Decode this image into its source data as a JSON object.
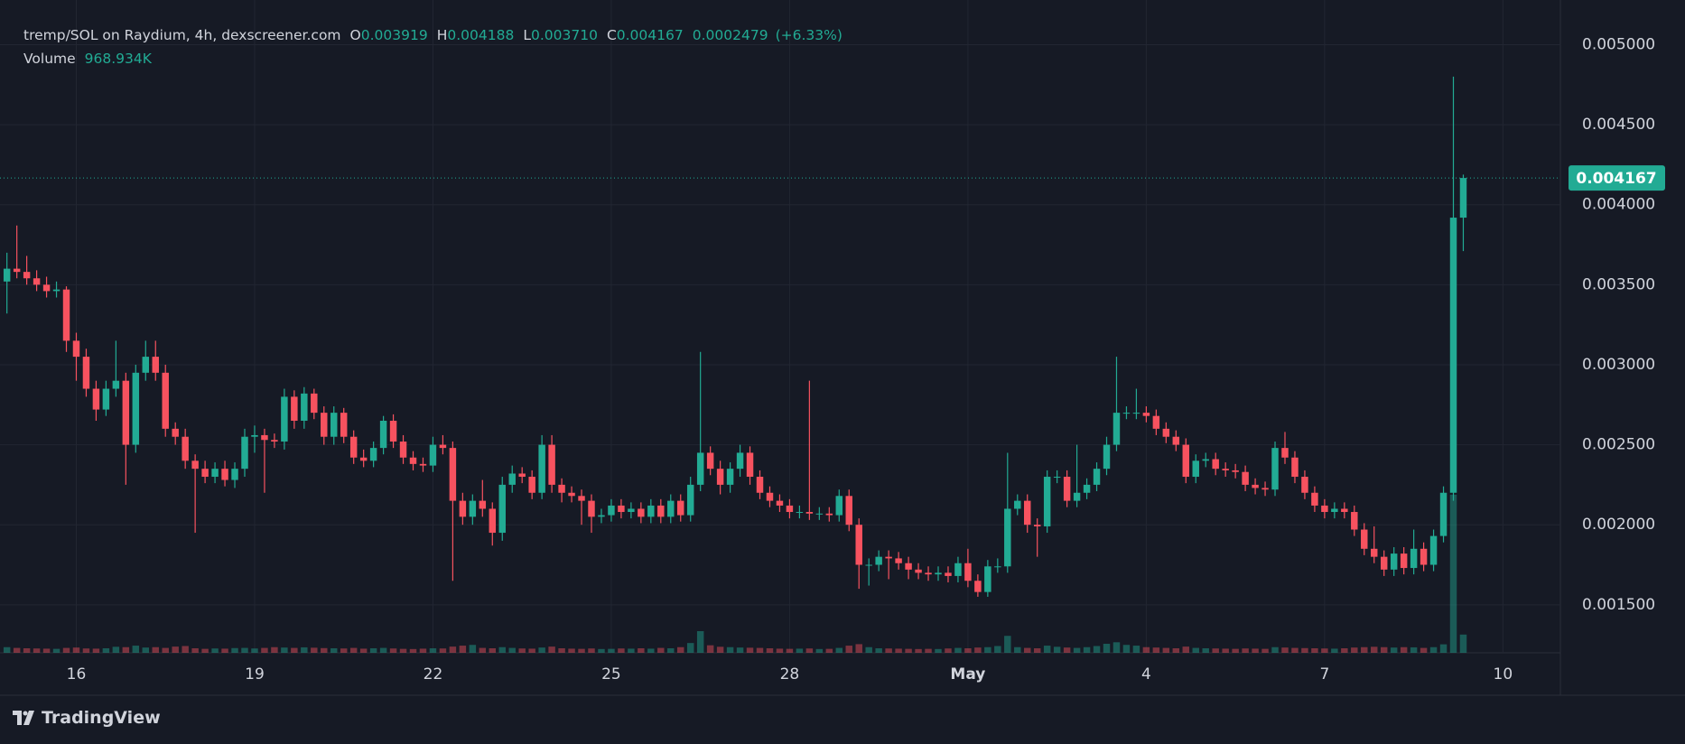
{
  "chart_data": {
    "type": "candlestick",
    "legend": {
      "title": "tremp/SOL on Raydium, 4h, dexscreener.com",
      "fields": [
        {
          "key": "O",
          "value": "0.003919"
        },
        {
          "key": "H",
          "value": "0.004188"
        },
        {
          "key": "L",
          "value": "0.003710"
        },
        {
          "key": "C",
          "value": "0.004167"
        }
      ],
      "change": "0.0002479",
      "change_pct": "(+6.33%)",
      "volume_name": "Volume",
      "volume_value": "968.934K",
      "price_label": "0.004167"
    },
    "watermark": "TradingView",
    "up_color": "#22ab94",
    "down_color": "#f7525f",
    "open": [
      0.00352,
      0.0036,
      0.00358,
      0.00354,
      0.0035,
      0.00346,
      0.00347,
      0.00315,
      0.00305,
      0.00285,
      0.00272,
      0.00285,
      0.0029,
      0.0025,
      0.00295,
      0.00305,
      0.00295,
      0.0026,
      0.00255,
      0.0024,
      0.00235,
      0.0023,
      0.00235,
      0.00228,
      0.00235,
      0.00255,
      0.00256,
      0.00253,
      0.00252,
      0.0028,
      0.00265,
      0.00282,
      0.0027,
      0.00255,
      0.0027,
      0.00255,
      0.00242,
      0.0024,
      0.00248,
      0.00265,
      0.00252,
      0.00242,
      0.00238,
      0.00237,
      0.0025,
      0.00248,
      0.00215,
      0.00205,
      0.00215,
      0.0021,
      0.00195,
      0.00225,
      0.00232,
      0.0023,
      0.0022,
      0.0025,
      0.00225,
      0.0022,
      0.00218,
      0.00215,
      0.00205,
      0.00206,
      0.00212,
      0.00208,
      0.0021,
      0.00205,
      0.00212,
      0.00205,
      0.00215,
      0.00206,
      0.00225,
      0.00245,
      0.00235,
      0.00225,
      0.00235,
      0.00245,
      0.0023,
      0.0022,
      0.00215,
      0.00212,
      0.00208,
      0.00208,
      0.00207,
      0.00207,
      0.00206,
      0.00218,
      0.002,
      0.00175,
      0.00175,
      0.0018,
      0.00179,
      0.00176,
      0.00172,
      0.0017,
      0.00169,
      0.0017,
      0.00168,
      0.00176,
      0.00165,
      0.00158,
      0.00174,
      0.00174,
      0.0021,
      0.00215,
      0.002,
      0.00199,
      0.0023,
      0.0023,
      0.00215,
      0.0022,
      0.00225,
      0.00235,
      0.0025,
      0.0027,
      0.0027,
      0.0027,
      0.00268,
      0.0026,
      0.00255,
      0.0025,
      0.0023,
      0.0024,
      0.00241,
      0.00235,
      0.00234,
      0.00233,
      0.00225,
      0.00223,
      0.00222,
      0.00248,
      0.00242,
      0.0023,
      0.0022,
      0.00212,
      0.00208,
      0.0021,
      0.00208,
      0.00197,
      0.00185,
      0.0018,
      0.00172,
      0.00182,
      0.00173,
      0.00185,
      0.00175,
      0.00193,
      0.0022,
      0.003919
    ],
    "high": [
      0.0037,
      0.00387,
      0.00368,
      0.00359,
      0.00355,
      0.00352,
      0.00349,
      0.0032,
      0.0031,
      0.0029,
      0.0029,
      0.00315,
      0.00295,
      0.003,
      0.00315,
      0.00315,
      0.003,
      0.00264,
      0.0026,
      0.00244,
      0.0024,
      0.00239,
      0.0024,
      0.00239,
      0.0026,
      0.00262,
      0.0026,
      0.00257,
      0.00285,
      0.00284,
      0.00286,
      0.00285,
      0.00274,
      0.00274,
      0.00273,
      0.00259,
      0.00247,
      0.00252,
      0.00268,
      0.00269,
      0.00256,
      0.00246,
      0.00242,
      0.00255,
      0.00256,
      0.00252,
      0.0022,
      0.00219,
      0.00228,
      0.00214,
      0.0023,
      0.00237,
      0.00236,
      0.00234,
      0.00256,
      0.00256,
      0.00229,
      0.00224,
      0.00222,
      0.00219,
      0.0021,
      0.00216,
      0.00216,
      0.00214,
      0.00214,
      0.00216,
      0.00216,
      0.00219,
      0.00219,
      0.0023,
      0.00308,
      0.00249,
      0.0024,
      0.00239,
      0.0025,
      0.00249,
      0.00234,
      0.00224,
      0.00219,
      0.00216,
      0.00212,
      0.0029,
      0.00211,
      0.00211,
      0.00222,
      0.00222,
      0.00204,
      0.00179,
      0.00184,
      0.00184,
      0.00183,
      0.0018,
      0.00176,
      0.00174,
      0.00174,
      0.00174,
      0.0018,
      0.00185,
      0.00169,
      0.00178,
      0.00179,
      0.00245,
      0.00219,
      0.00219,
      0.00204,
      0.00234,
      0.00234,
      0.00234,
      0.0025,
      0.00229,
      0.00239,
      0.00255,
      0.00305,
      0.00274,
      0.00285,
      0.00274,
      0.00272,
      0.00264,
      0.00259,
      0.00254,
      0.00244,
      0.00245,
      0.00245,
      0.00239,
      0.00238,
      0.00237,
      0.00229,
      0.00227,
      0.00252,
      0.00258,
      0.00246,
      0.00234,
      0.00224,
      0.00216,
      0.00214,
      0.00214,
      0.00212,
      0.00201,
      0.00199,
      0.00184,
      0.00186,
      0.00186,
      0.00197,
      0.00189,
      0.00197,
      0.00224,
      0.0048,
      0.004188
    ],
    "low": [
      0.00332,
      0.00354,
      0.0035,
      0.00346,
      0.00342,
      0.00342,
      0.00308,
      0.0029,
      0.0028,
      0.00265,
      0.00268,
      0.0028,
      0.00225,
      0.00245,
      0.0029,
      0.0029,
      0.00255,
      0.0025,
      0.00235,
      0.00195,
      0.00226,
      0.00226,
      0.00224,
      0.00223,
      0.0023,
      0.00245,
      0.0022,
      0.00248,
      0.00247,
      0.0026,
      0.0026,
      0.00266,
      0.0025,
      0.0025,
      0.00251,
      0.00238,
      0.00236,
      0.00236,
      0.00244,
      0.00248,
      0.00238,
      0.00234,
      0.00233,
      0.00233,
      0.00244,
      0.00165,
      0.002,
      0.002,
      0.00205,
      0.00187,
      0.0019,
      0.0022,
      0.00226,
      0.00216,
      0.00216,
      0.0022,
      0.00214,
      0.00214,
      0.002,
      0.00195,
      0.00201,
      0.00202,
      0.00204,
      0.00204,
      0.00201,
      0.00201,
      0.00201,
      0.00201,
      0.00202,
      0.00202,
      0.00221,
      0.00231,
      0.00219,
      0.0022,
      0.0023,
      0.00225,
      0.00216,
      0.00211,
      0.00208,
      0.00204,
      0.00204,
      0.00203,
      0.00203,
      0.00202,
      0.00202,
      0.00196,
      0.0016,
      0.00162,
      0.00171,
      0.00166,
      0.00172,
      0.00166,
      0.00166,
      0.00165,
      0.00165,
      0.00164,
      0.00164,
      0.00161,
      0.00155,
      0.00155,
      0.0017,
      0.0017,
      0.00206,
      0.00195,
      0.0018,
      0.00195,
      0.00226,
      0.00211,
      0.00211,
      0.00216,
      0.00221,
      0.00231,
      0.00246,
      0.00266,
      0.00266,
      0.00264,
      0.00256,
      0.00251,
      0.00246,
      0.00226,
      0.00226,
      0.00236,
      0.00231,
      0.0023,
      0.00229,
      0.00221,
      0.00219,
      0.00218,
      0.00218,
      0.00238,
      0.00226,
      0.00216,
      0.00208,
      0.00204,
      0.00204,
      0.00204,
      0.00193,
      0.00181,
      0.00176,
      0.00168,
      0.00168,
      0.00169,
      0.00169,
      0.00171,
      0.00171,
      0.00189,
      0.00215,
      0.00371
    ],
    "close": [
      0.0036,
      0.00358,
      0.00354,
      0.0035,
      0.00346,
      0.00347,
      0.00315,
      0.00305,
      0.00285,
      0.00272,
      0.00285,
      0.0029,
      0.0025,
      0.00295,
      0.00305,
      0.00295,
      0.0026,
      0.00255,
      0.0024,
      0.00235,
      0.0023,
      0.00235,
      0.00228,
      0.00235,
      0.00255,
      0.00256,
      0.00253,
      0.00252,
      0.0028,
      0.00265,
      0.00282,
      0.0027,
      0.00255,
      0.0027,
      0.00255,
      0.00242,
      0.0024,
      0.00248,
      0.00265,
      0.00252,
      0.00242,
      0.00238,
      0.00237,
      0.0025,
      0.00248,
      0.00215,
      0.00205,
      0.00215,
      0.0021,
      0.00195,
      0.00225,
      0.00232,
      0.0023,
      0.0022,
      0.0025,
      0.00225,
      0.0022,
      0.00218,
      0.00215,
      0.00205,
      0.00206,
      0.00212,
      0.00208,
      0.0021,
      0.00205,
      0.00212,
      0.00205,
      0.00215,
      0.00206,
      0.00225,
      0.00245,
      0.00235,
      0.00225,
      0.00235,
      0.00245,
      0.0023,
      0.0022,
      0.00215,
      0.00212,
      0.00208,
      0.00208,
      0.00207,
      0.00207,
      0.00206,
      0.00218,
      0.002,
      0.00175,
      0.00175,
      0.0018,
      0.00179,
      0.00176,
      0.00172,
      0.0017,
      0.00169,
      0.0017,
      0.00168,
      0.00176,
      0.00165,
      0.00158,
      0.00174,
      0.00174,
      0.0021,
      0.00215,
      0.002,
      0.00199,
      0.0023,
      0.0023,
      0.00215,
      0.0022,
      0.00225,
      0.00235,
      0.0025,
      0.0027,
      0.0027,
      0.0027,
      0.00268,
      0.0026,
      0.00255,
      0.0025,
      0.0023,
      0.0024,
      0.00241,
      0.00235,
      0.00234,
      0.00233,
      0.00225,
      0.00223,
      0.00222,
      0.00248,
      0.00242,
      0.0023,
      0.0022,
      0.00212,
      0.00208,
      0.0021,
      0.00208,
      0.00197,
      0.00185,
      0.0018,
      0.00172,
      0.00182,
      0.00173,
      0.00185,
      0.00175,
      0.00193,
      0.0022,
      0.003919,
      0.004167
    ],
    "volume": [
      300,
      260,
      240,
      230,
      220,
      210,
      260,
      280,
      230,
      220,
      240,
      320,
      300,
      380,
      280,
      300,
      260,
      330,
      360,
      240,
      210,
      230,
      220,
      250,
      260,
      230,
      260,
      300,
      280,
      260,
      290,
      270,
      250,
      240,
      230,
      260,
      220,
      240,
      260,
      230,
      210,
      200,
      220,
      240,
      230,
      330,
      380,
      420,
      260,
      240,
      300,
      260,
      230,
      220,
      280,
      330,
      240,
      220,
      210,
      230,
      200,
      210,
      230,
      220,
      240,
      220,
      260,
      240,
      300,
      520,
      1150,
      400,
      320,
      300,
      280,
      270,
      260,
      240,
      220,
      210,
      220,
      230,
      200,
      210,
      260,
      380,
      460,
      300,
      240,
      230,
      220,
      210,
      200,
      210,
      200,
      230,
      260,
      240,
      280,
      300,
      360,
      900,
      300,
      260,
      240,
      380,
      320,
      280,
      260,
      300,
      360,
      480,
      560,
      420,
      380,
      300,
      280,
      260,
      240,
      330,
      260,
      240,
      230,
      220,
      210,
      230,
      220,
      210,
      300,
      280,
      260,
      250,
      240,
      230,
      220,
      240,
      280,
      300,
      320,
      300,
      280,
      300,
      290,
      260,
      300,
      450,
      8400,
      968.934
    ],
    "xlim": [
      -0.7,
      156.8
    ],
    "xticks": [
      {
        "value": 7,
        "label": "16"
      },
      {
        "value": 25,
        "label": "19"
      },
      {
        "value": 43,
        "label": "22"
      },
      {
        "value": 61,
        "label": "25"
      },
      {
        "value": 79,
        "label": "28"
      },
      {
        "value": 97,
        "label": "May"
      },
      {
        "value": 115,
        "label": "4"
      },
      {
        "value": 133,
        "label": "7"
      },
      {
        "value": 151,
        "label": "10"
      }
    ],
    "ylim": [
      0.0012,
      0.0052
    ],
    "yticks": [
      {
        "value": 0.0015,
        "label": "0.001500"
      },
      {
        "value": 0.002,
        "label": "0.002000"
      },
      {
        "value": 0.0025,
        "label": "0.002500"
      },
      {
        "value": 0.003,
        "label": "0.003000"
      },
      {
        "value": 0.0035,
        "label": "0.003500"
      },
      {
        "value": 0.004,
        "label": "0.004000"
      },
      {
        "value": 0.0045,
        "label": "0.004500"
      },
      {
        "value": 0.005,
        "label": "0.005000"
      }
    ],
    "y2lim": [
      0,
      34000
    ],
    "grid": true
  }
}
